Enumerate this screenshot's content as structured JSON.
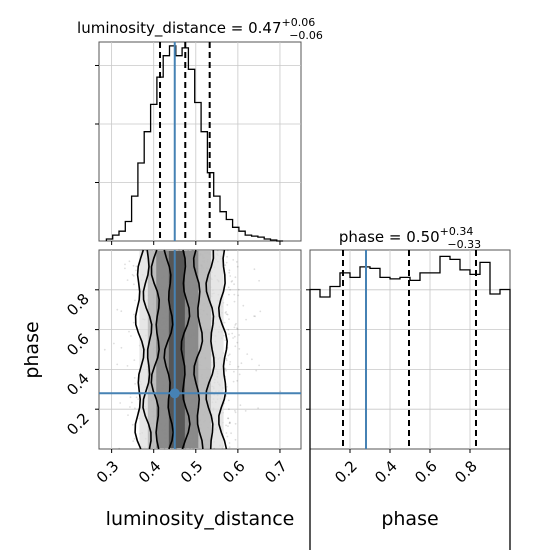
{
  "chart_data": {
    "type": "corner",
    "parameters": [
      "luminosity_distance",
      "phase"
    ],
    "injection": {
      "luminosity_distance": 0.45,
      "phase": 0.28
    },
    "colors": {
      "injection": "#4682b4",
      "hist": "#000000",
      "grid": "#c8c8c8"
    },
    "panels": {
      "luminosity_distance_hist": {
        "title_text": "luminosity_distance = 0.47",
        "title_sup": "+0.06",
        "title_sub": "−0.06",
        "xlim": [
          0.27,
          0.75
        ],
        "quantiles": [
          0.415,
          0.475,
          0.533
        ],
        "bins": [
          0.295,
          0.31,
          0.325,
          0.34,
          0.355,
          0.37,
          0.385,
          0.4,
          0.415,
          0.43,
          0.445,
          0.46,
          0.475,
          0.49,
          0.505,
          0.52,
          0.535,
          0.55,
          0.565,
          0.58,
          0.595,
          0.61,
          0.625,
          0.64,
          0.655,
          0.67,
          0.685,
          0.7
        ],
        "density": [
          0.01,
          0.03,
          0.05,
          0.1,
          0.23,
          0.4,
          0.56,
          0.7,
          0.84,
          0.95,
          1.0,
          0.95,
          0.99,
          0.88,
          0.71,
          0.56,
          0.35,
          0.23,
          0.15,
          0.11,
          0.07,
          0.05,
          0.03,
          0.025,
          0.02,
          0.01,
          0.005,
          0.0
        ]
      },
      "phase_hist": {
        "title_text": "phase = 0.50",
        "title_sup": "+0.34",
        "title_sub": "−0.33",
        "xlim": [
          0.0,
          1.0
        ],
        "quantiles": [
          0.165,
          0.495,
          0.83
        ],
        "bins": [
          0.025,
          0.075,
          0.125,
          0.175,
          0.225,
          0.275,
          0.325,
          0.375,
          0.425,
          0.475,
          0.525,
          0.575,
          0.625,
          0.675,
          0.725,
          0.775,
          0.825,
          0.875,
          0.925,
          0.975
        ],
        "density": [
          0.945,
          0.92,
          0.955,
          1.0,
          0.985,
          1.02,
          1.015,
          0.985,
          0.98,
          0.985,
          0.975,
          1.0,
          1.0,
          1.055,
          1.045,
          1.01,
          0.995,
          1.035,
          0.93,
          0.945
        ]
      },
      "joint": {
        "xlim": [
          0.27,
          0.75
        ],
        "ylim": [
          0.0,
          1.0
        ],
        "contour_x_bounds": [
          [
            0.436,
            0.474
          ],
          [
            0.406,
            0.506
          ],
          [
            0.386,
            0.536
          ],
          [
            0.366,
            0.566
          ]
        ]
      }
    },
    "axes": {
      "x_luminosity_distance": {
        "label": "luminosity_distance",
        "ticks": [
          0.3,
          0.4,
          0.5,
          0.6,
          0.7
        ],
        "tick_labels": [
          "0.3",
          "0.4",
          "0.5",
          "0.6",
          "0.7"
        ]
      },
      "y_phase": {
        "label": "phase",
        "ticks": [
          0.2,
          0.4,
          0.6,
          0.8
        ],
        "tick_labels": [
          "0.2",
          "0.4",
          "0.6",
          "0.8"
        ]
      },
      "x_phase": {
        "label": "phase",
        "ticks": [
          0.2,
          0.4,
          0.6,
          0.8
        ],
        "tick_labels": [
          "0.2",
          "0.4",
          "0.6",
          "0.8"
        ]
      }
    },
    "grid": true
  }
}
